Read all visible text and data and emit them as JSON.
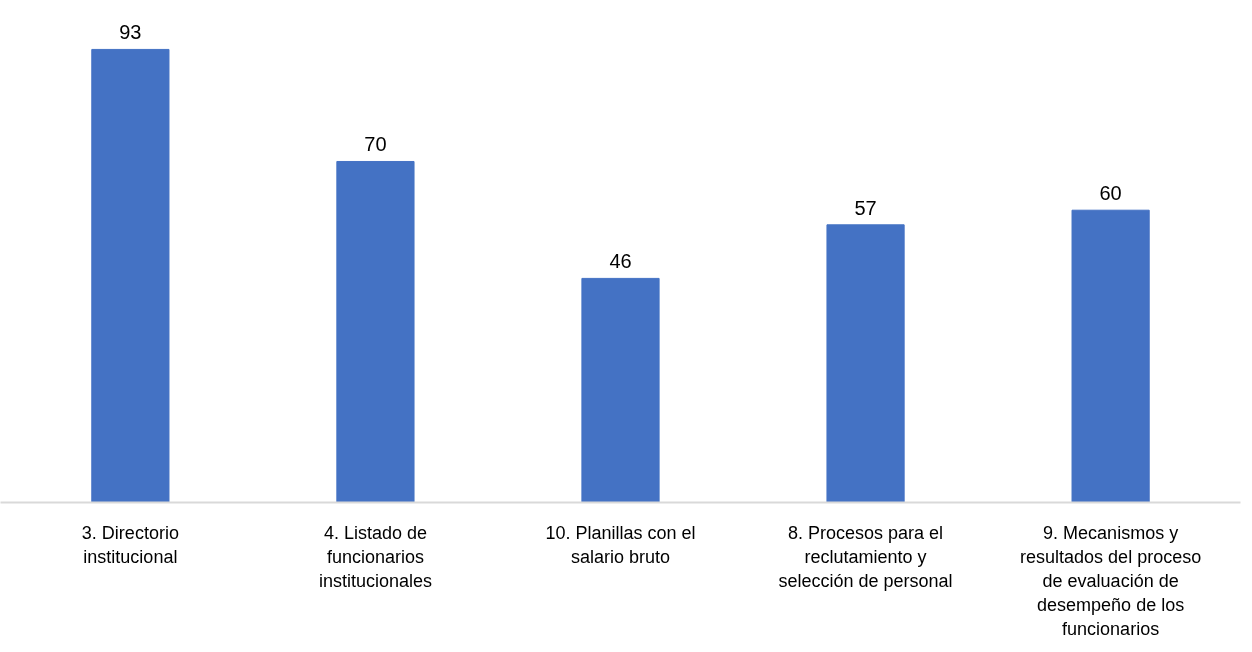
{
  "chart_data": {
    "type": "bar",
    "categories": [
      "3. Directorio institucional",
      "4. Listado de funcionarios institucionales",
      "10. Planillas con el salario bruto",
      "8. Procesos para el reclutamiento y selección de personal",
      "9. Mecanismos y resultados del proceso de evaluación de desempeño de los funcionarios"
    ],
    "values": [
      93,
      70,
      46,
      57,
      60
    ],
    "color": "#4472c4",
    "data_labels": true,
    "grid": false
  }
}
